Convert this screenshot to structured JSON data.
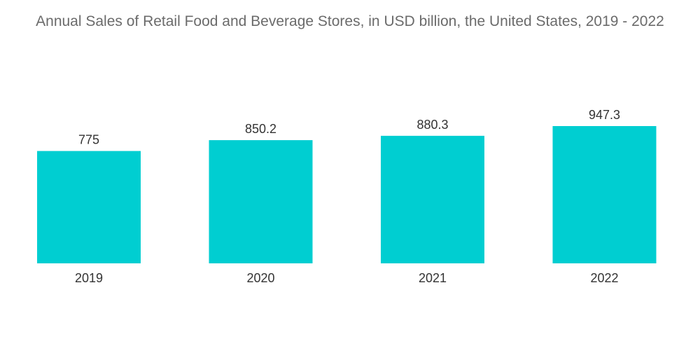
{
  "chart_data": {
    "type": "bar",
    "title": "Annual Sales of Retail Food and Beverage Stores, in USD billion, the United States, 2019 - 2022",
    "categories": [
      "2019",
      "2020",
      "2021",
      "2022"
    ],
    "values": [
      775,
      850.2,
      880.3,
      947.3
    ],
    "value_labels": [
      "775",
      "850.2",
      "880.3",
      "947.3"
    ],
    "xlabel": "",
    "ylabel": "",
    "ylim": [
      0,
      947.3
    ],
    "grid": false,
    "legend": "none",
    "bar_color": "#00ced1"
  }
}
